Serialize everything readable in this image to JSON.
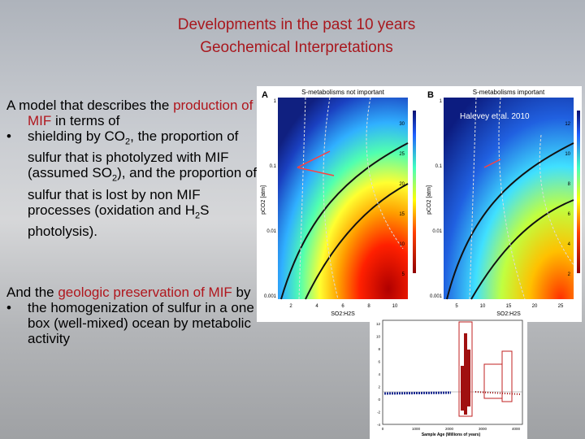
{
  "title": [
    "Developments in the past 10 years",
    "Geochemical Interpretations"
  ],
  "model": {
    "intro": [
      "A model that describes the ",
      "production of MIF",
      " in terms of"
    ],
    "bullet": [
      "shielding by CO",
      "2",
      ", the proportion of sulfur that is photolyzed with MIF (assumed SO",
      "2",
      "), and the proportion of sulfur that is lost by non MIF processes (oxidation and H",
      "2",
      "S photolysis)."
    ]
  },
  "preservation": {
    "intro": [
      "And the ",
      "geologic preservation of MIF",
      " by"
    ],
    "bullet": "the homogenization of sulfur in a one box (well-mixed) ocean by metabolic activity"
  },
  "figure": {
    "panels": [
      {
        "letter": "A",
        "title": "S-metabolisms not important",
        "y_label": "pCO2 [atm]",
        "x_label": "SO2:H2S",
        "y_ticks": [
          "1",
          "0.1",
          "0.01",
          "0.001"
        ],
        "x_ticks": [
          "2",
          "4",
          "6",
          "8",
          "10"
        ],
        "colorbar_ticks": [
          "30",
          "25",
          "20",
          "15",
          "10",
          "5"
        ]
      },
      {
        "letter": "B",
        "title": "S-metabolisms important",
        "y_label": "pCO2 [atm]",
        "x_label": "SO2:H2S",
        "y_ticks": [
          "1",
          "0.1",
          "0.01",
          "0.001"
        ],
        "x_ticks": [
          "5",
          "10",
          "15",
          "20",
          "25"
        ],
        "colorbar_ticks": [
          "12",
          "10",
          "8",
          "6",
          "4",
          "2"
        ]
      }
    ],
    "citation": "Halevey  et al. 2010"
  },
  "inset": {
    "x_label": "Sample Age (Millions of years)",
    "x_ticks": [
      "0",
      "1000",
      "2000",
      "3000",
      "4000"
    ],
    "y_ticks": [
      "12",
      "10",
      "8",
      "6",
      "4",
      "2",
      "0",
      "-2",
      "-4"
    ]
  }
}
